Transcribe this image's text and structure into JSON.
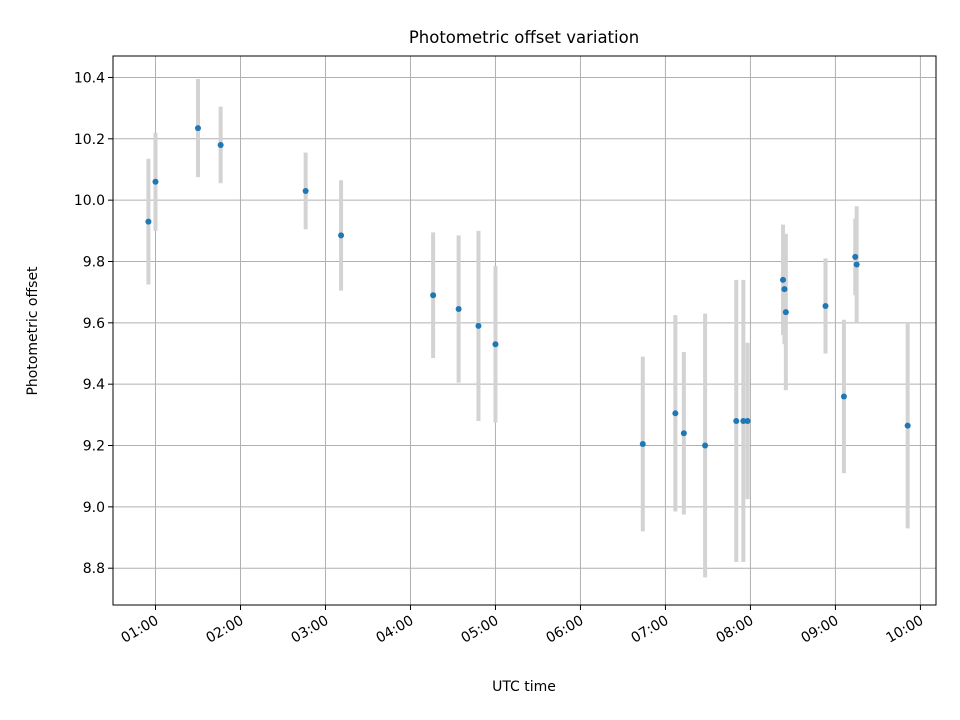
{
  "chart_data": {
    "type": "scatter",
    "title": "Photometric offset variation",
    "xlabel": "UTC time",
    "ylabel": "Photometric offset",
    "grid": true,
    "xlim": [
      "00:30",
      "10:11"
    ],
    "ylim": [
      8.68,
      10.47
    ],
    "x_ticks": [
      "01:00",
      "02:00",
      "03:00",
      "04:00",
      "05:00",
      "06:00",
      "07:00",
      "08:00",
      "09:00",
      "10:00"
    ],
    "y_ticks": [
      8.8,
      9.0,
      9.2,
      9.4,
      9.6,
      9.8,
      10.0,
      10.2,
      10.4
    ],
    "y_tick_labels": [
      "8.8",
      "9.0",
      "9.2",
      "9.4",
      "9.6",
      "9.8",
      "10.0",
      "10.2",
      "10.4"
    ],
    "colors": {
      "points": "#1f77b4",
      "error_bars": "#d3d3d3"
    },
    "points": [
      {
        "time": "00:55",
        "y": 9.93,
        "err": 0.205
      },
      {
        "time": "01:00",
        "y": 10.06,
        "err": 0.16
      },
      {
        "time": "01:30",
        "y": 10.235,
        "err": 0.16
      },
      {
        "time": "01:46",
        "y": 10.18,
        "err": 0.125
      },
      {
        "time": "02:46",
        "y": 10.03,
        "err": 0.125
      },
      {
        "time": "03:11",
        "y": 9.885,
        "err": 0.18
      },
      {
        "time": "04:16",
        "y": 9.69,
        "err": 0.205
      },
      {
        "time": "04:34",
        "y": 9.645,
        "err": 0.24
      },
      {
        "time": "04:48",
        "y": 9.59,
        "err": 0.31
      },
      {
        "time": "05:00",
        "y": 9.53,
        "err": 0.255
      },
      {
        "time": "06:44",
        "y": 9.205,
        "err": 0.285
      },
      {
        "time": "07:07",
        "y": 9.305,
        "err": 0.32
      },
      {
        "time": "07:13",
        "y": 9.24,
        "err": 0.265
      },
      {
        "time": "07:28",
        "y": 9.2,
        "err": 0.43
      },
      {
        "time": "07:50",
        "y": 9.28,
        "err": 0.46
      },
      {
        "time": "07:55",
        "y": 9.28,
        "err": 0.46
      },
      {
        "time": "07:58",
        "y": 9.28,
        "err": 0.255
      },
      {
        "time": "08:23",
        "y": 9.74,
        "err": 0.18
      },
      {
        "time": "08:24",
        "y": 9.71,
        "err": 0.18
      },
      {
        "time": "08:25",
        "y": 9.635,
        "err": 0.255
      },
      {
        "time": "08:53",
        "y": 9.655,
        "err": 0.155
      },
      {
        "time": "09:06",
        "y": 9.36,
        "err": 0.25
      },
      {
        "time": "09:14",
        "y": 9.815,
        "err": 0.125
      },
      {
        "time": "09:15",
        "y": 9.79,
        "err": 0.19
      },
      {
        "time": "09:51",
        "y": 9.265,
        "err": 0.335
      }
    ]
  }
}
